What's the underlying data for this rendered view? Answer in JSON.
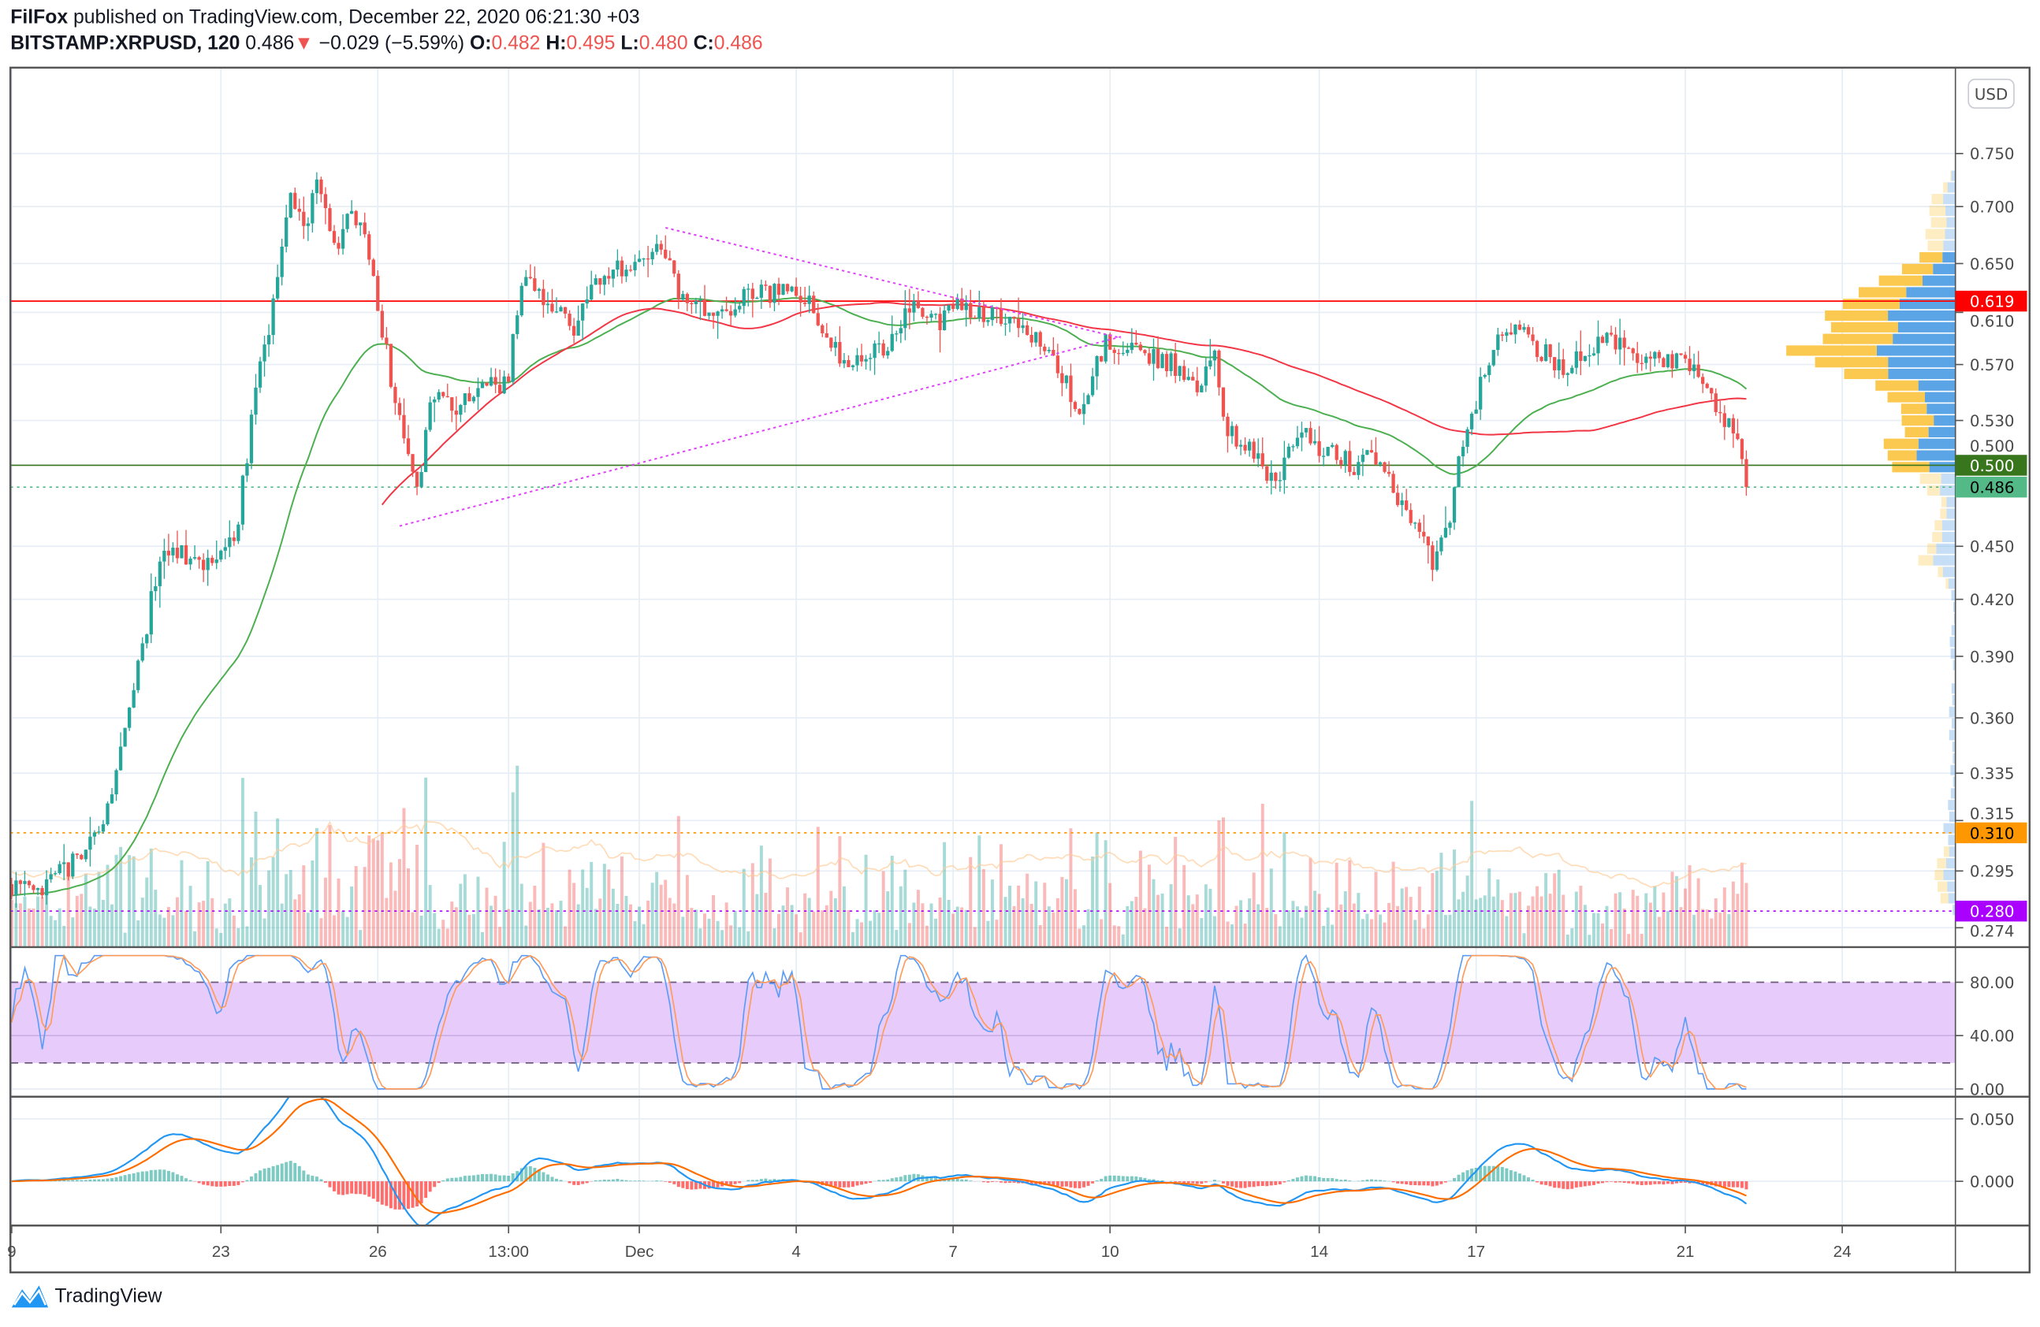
{
  "header": {
    "author": "FilFox",
    "published": "published on TradingView.com, December 22, 2020 06:21:30 +03",
    "symbol": "BITSTAMP:XRPUSD, 120",
    "last": "0.486",
    "change": "−0.029 (−5.59%)",
    "o_label": "O:",
    "o": "0.482",
    "h_label": "H:",
    "h": "0.495",
    "l_label": "L:",
    "l": "0.480",
    "c_label": "C:",
    "c": "0.486"
  },
  "currency_button": "USD",
  "brand": "TradingView",
  "chart_data": {
    "type": "candlestick",
    "interval": "120",
    "y_scale": "log",
    "price_ticks": [
      "0.750",
      "0.700",
      "0.650",
      "0.610",
      "0.570",
      "0.530",
      "0.500",
      "0.450",
      "0.420",
      "0.390",
      "0.360",
      "0.335",
      "0.315",
      "0.295",
      "0.274"
    ],
    "time_ticks": [
      {
        "label": "9",
        "date": "2020-11-19T00:00"
      },
      {
        "label": "23",
        "date": "2020-11-23T00:00"
      },
      {
        "label": "26",
        "date": "2020-11-26T00:00"
      },
      {
        "label": "13:00",
        "date": "2020-11-28T12:00"
      },
      {
        "label": "Dec",
        "date": "2020-12-01T00:00"
      },
      {
        "label": "4",
        "date": "2020-12-04T00:00"
      },
      {
        "label": "7",
        "date": "2020-12-07T00:00"
      },
      {
        "label": "10",
        "date": "2020-12-10T00:00"
      },
      {
        "label": "14",
        "date": "2020-12-14T00:00"
      },
      {
        "label": "17",
        "date": "2020-12-17T00:00"
      },
      {
        "label": "21",
        "date": "2020-12-21T00:00"
      },
      {
        "label": "24",
        "date": "2020-12-24T00:00"
      }
    ],
    "price_path": [
      [
        "2020-11-19T00:00",
        0.29
      ],
      [
        "2020-11-19T12:00",
        0.285
      ],
      [
        "2020-11-20T06:00",
        0.3
      ],
      [
        "2020-11-20T18:00",
        0.31
      ],
      [
        "2020-11-21T06:00",
        0.36
      ],
      [
        "2020-11-21T16:00",
        0.42
      ],
      [
        "2020-11-22T00:00",
        0.45
      ],
      [
        "2020-11-22T12:00",
        0.44
      ],
      [
        "2020-11-23T06:00",
        0.45
      ],
      [
        "2020-11-23T14:00",
        0.53
      ],
      [
        "2020-11-24T00:00",
        0.62
      ],
      [
        "2020-11-24T08:00",
        0.72
      ],
      [
        "2020-11-24T14:00",
        0.68
      ],
      [
        "2020-11-24T20:00",
        0.72
      ],
      [
        "2020-11-25T06:00",
        0.66
      ],
      [
        "2020-11-25T12:00",
        0.7
      ],
      [
        "2020-11-25T20:00",
        0.66
      ],
      [
        "2020-11-26T06:00",
        0.56
      ],
      [
        "2020-11-26T12:00",
        0.52
      ],
      [
        "2020-11-26T18:00",
        0.48
      ],
      [
        "2020-11-27T00:00",
        0.55
      ],
      [
        "2020-11-27T12:00",
        0.54
      ],
      [
        "2020-11-28T00:00",
        0.55
      ],
      [
        "2020-11-28T12:00",
        0.56
      ],
      [
        "2020-11-28T18:00",
        0.64
      ],
      [
        "2020-11-29T06:00",
        0.62
      ],
      [
        "2020-11-29T18:00",
        0.6
      ],
      [
        "2020-11-30T06:00",
        0.64
      ],
      [
        "2020-11-30T18:00",
        0.65
      ],
      [
        "2020-12-01T06:00",
        0.66
      ],
      [
        "2020-12-01T14:00",
        0.66
      ],
      [
        "2020-12-01T18:00",
        0.62
      ],
      [
        "2020-12-02T06:00",
        0.61
      ],
      [
        "2020-12-03T00:00",
        0.62
      ],
      [
        "2020-12-03T18:00",
        0.63
      ],
      [
        "2020-12-04T06:00",
        0.62
      ],
      [
        "2020-12-04T18:00",
        0.58
      ],
      [
        "2020-12-05T06:00",
        0.57
      ],
      [
        "2020-12-05T18:00",
        0.585
      ],
      [
        "2020-12-06T04:00",
        0.615
      ],
      [
        "2020-12-06T16:00",
        0.6
      ],
      [
        "2020-12-07T04:00",
        0.615
      ],
      [
        "2020-12-07T16:00",
        0.61
      ],
      [
        "2020-12-08T10:00",
        0.6
      ],
      [
        "2020-12-08T22:00",
        0.57
      ],
      [
        "2020-12-09T10:00",
        0.54
      ],
      [
        "2020-12-09T22:00",
        0.585
      ],
      [
        "2020-12-10T10:00",
        0.58
      ],
      [
        "2020-12-11T04:00",
        0.57
      ],
      [
        "2020-12-11T16:00",
        0.555
      ],
      [
        "2020-12-12T00:00",
        0.58
      ],
      [
        "2020-12-12T04:00",
        0.53
      ],
      [
        "2020-12-12T16:00",
        0.51
      ],
      [
        "2020-12-13T04:00",
        0.49
      ],
      [
        "2020-12-13T16:00",
        0.52
      ],
      [
        "2020-12-14T04:00",
        0.51
      ],
      [
        "2020-12-14T16:00",
        0.5
      ],
      [
        "2020-12-15T04:00",
        0.505
      ],
      [
        "2020-12-15T16:00",
        0.47
      ],
      [
        "2020-12-16T04:00",
        0.44
      ],
      [
        "2020-12-16T12:00",
        0.46
      ],
      [
        "2020-12-16T16:00",
        0.5
      ],
      [
        "2020-12-17T04:00",
        0.57
      ],
      [
        "2020-12-17T16:00",
        0.6
      ],
      [
        "2020-12-18T04:00",
        0.58
      ],
      [
        "2020-12-18T16:00",
        0.57
      ],
      [
        "2020-12-19T04:00",
        0.58
      ],
      [
        "2020-12-19T16:00",
        0.59
      ],
      [
        "2020-12-20T04:00",
        0.575
      ],
      [
        "2020-12-20T16:00",
        0.575
      ],
      [
        "2020-12-21T04:00",
        0.565
      ],
      [
        "2020-12-21T16:00",
        0.53
      ],
      [
        "2020-12-22T00:00",
        0.52
      ],
      [
        "2020-12-22T04:00",
        0.486
      ]
    ],
    "horizontal_lines": [
      {
        "price": 0.619,
        "label": "0.619",
        "color": "#ff0000",
        "style": "solid"
      },
      {
        "price": 0.5,
        "label": "0.500",
        "color": "#38761d",
        "style": "solid"
      },
      {
        "price": 0.486,
        "label": "0.486",
        "color": "#53b987",
        "style": "dotted"
      },
      {
        "price": 0.31,
        "label": "0.310",
        "color": "#ff9800",
        "style": "dotted"
      },
      {
        "price": 0.28,
        "label": "0.280",
        "color": "#aa00ff",
        "style": "dotted"
      }
    ],
    "trendlines": [
      {
        "from": [
          "2020-12-01T12:00",
          0.681
        ],
        "to": [
          "2020-12-10T05:00",
          0.59
        ],
        "color": "#e040fb"
      },
      {
        "from": [
          "2020-11-26T10:00",
          0.462
        ],
        "to": [
          "2020-12-10T05:00",
          0.591
        ],
        "color": "#e040fb"
      }
    ],
    "colors": {
      "up": "#26a69a",
      "down": "#ef5350",
      "ma_fast": "#4caf50",
      "ma_slow": "#f23645",
      "vp_up": "#5ba4e5",
      "vp_down": "#fbc94f",
      "stoch_k": "#5b9cf6",
      "stoch_d": "#ff9b5a",
      "macd": "#2196f3",
      "signal": "#ff6d00"
    },
    "stoch_rsi": {
      "ticks": [
        "80.00",
        "40.00",
        "0.00"
      ],
      "upper": 80,
      "lower": 20
    },
    "macd": {
      "ticks": [
        "0.050",
        "0.000"
      ]
    }
  }
}
